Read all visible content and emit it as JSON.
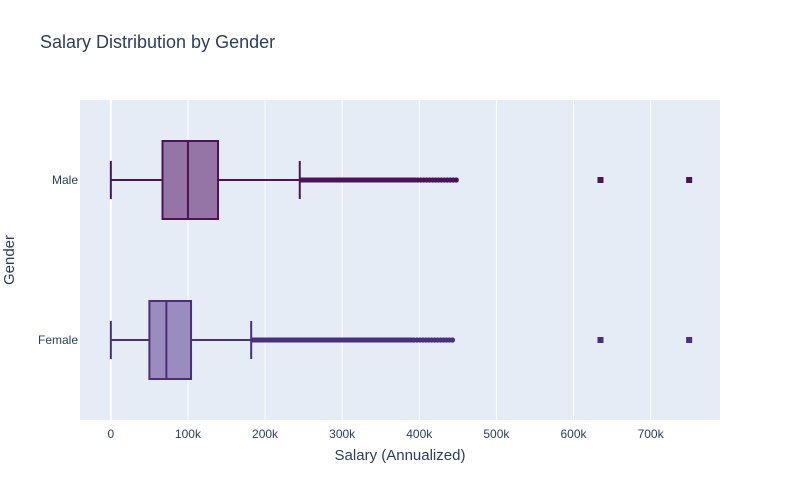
{
  "chart_data": {
    "type": "box",
    "orientation": "horizontal",
    "title": "Salary Distribution by Gender",
    "xlabel": "Salary (Annualized)",
    "ylabel": "Gender",
    "xlim": [
      -40000,
      790000
    ],
    "x_ticks": [
      0,
      100000,
      200000,
      300000,
      400000,
      500000,
      600000,
      700000
    ],
    "x_tick_labels": [
      "0",
      "100k",
      "200k",
      "300k",
      "400k",
      "500k",
      "600k",
      "700k"
    ],
    "categories": [
      "Male",
      "Female"
    ],
    "grid": true,
    "colors": {
      "plot_bg": "#e5ecf6",
      "grid": "#ffffff",
      "text": "#2a3f5f",
      "male_line": "#4b1458",
      "male_fill": "#9575a6",
      "female_line": "#4a2f7a",
      "female_fill": "#9a8cbf"
    },
    "series": [
      {
        "name": "Male",
        "whisker_low": 0,
        "q1": 67000,
        "median": 100000,
        "q3": 139000,
        "whisker_high": 245000,
        "outlier_range": [
          245000,
          448000
        ],
        "outliers_far": [
          635000,
          750000
        ]
      },
      {
        "name": "Female",
        "whisker_low": 0,
        "q1": 50000,
        "median": 72000,
        "q3": 104000,
        "whisker_high": 182000,
        "outlier_range": [
          182000,
          443000
        ],
        "outliers_far": [
          635000,
          750000
        ]
      }
    ]
  }
}
